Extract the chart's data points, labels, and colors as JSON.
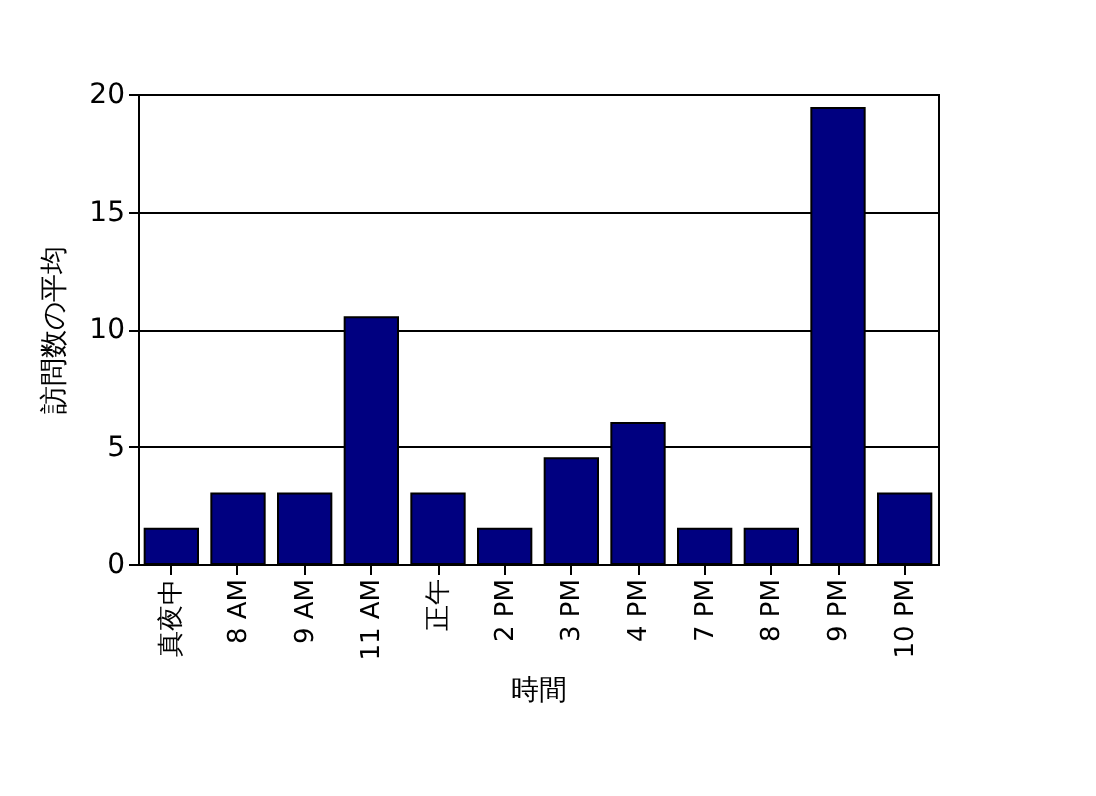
{
  "chart_data": {
    "type": "bar",
    "xlabel": "時間",
    "ylabel": "訪問数の平均",
    "categories": [
      "真夜中",
      "8 AM",
      "9 AM",
      "11 AM",
      "正午",
      "2 PM",
      "3 PM",
      "4 PM",
      "7 PM",
      "8 PM",
      "9 PM",
      "10 PM"
    ],
    "values": [
      1.5,
      3.0,
      3.0,
      10.5,
      3.0,
      1.5,
      4.5,
      6.0,
      1.5,
      1.5,
      19.4,
      3.0
    ],
    "color": "#000080",
    "ylim": [
      0,
      20
    ],
    "yticks": [
      0,
      5,
      10,
      15,
      20
    ],
    "grid": "y"
  }
}
